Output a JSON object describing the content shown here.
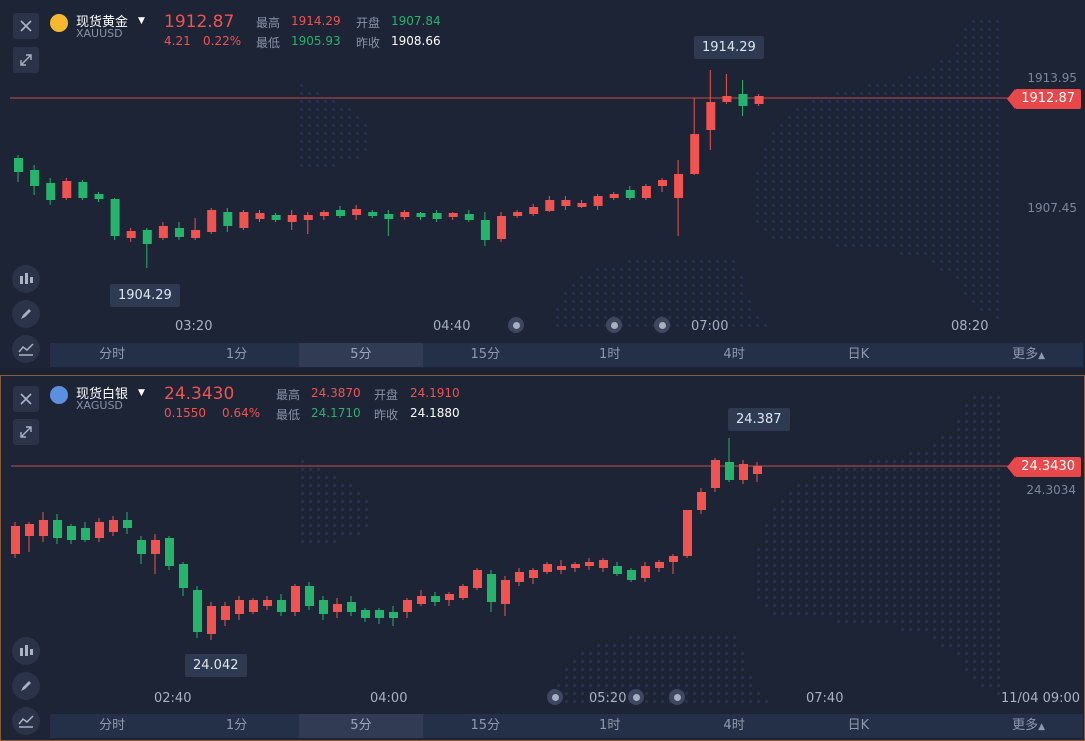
{
  "colors": {
    "up": "#f05350",
    "down": "#26b36b",
    "bg": "#1c2436",
    "accent": "#e8484a"
  },
  "gold": {
    "name": "现货黄金",
    "code": "XAUUSD",
    "price": "1912.87",
    "change": "4.21",
    "change_pct": "0.22%",
    "labels": {
      "high": "最高",
      "open": "开盘",
      "low": "最低",
      "prev_close": "昨收"
    },
    "high": "1914.29",
    "open": "1907.84",
    "low": "1905.93",
    "prev_close": "1908.66",
    "axis": [
      "1913.95",
      "1907.45"
    ],
    "price_tag": "1912.87",
    "callout_high": "1914.29",
    "callout_low": "1904.29",
    "time_labels": [
      "03:20",
      "04:40",
      "07:00",
      "08:20"
    ],
    "tabs": [
      "分时",
      "1分",
      "5分",
      "15分",
      "1时",
      "4时",
      "日K",
      "更多"
    ],
    "active_tab": "5分"
  },
  "silver": {
    "name": "现货白银",
    "code": "XAGUSD",
    "price": "24.3430",
    "change": "0.1550",
    "change_pct": "0.64%",
    "labels": {
      "high": "最高",
      "open": "开盘",
      "low": "最低",
      "prev_close": "昨收"
    },
    "high": "24.3870",
    "open": "24.1910",
    "low": "24.1710",
    "prev_close": "24.1880",
    "axis": [
      "24.3034"
    ],
    "price_tag": "24.3430",
    "callout_high": "24.387",
    "callout_low": "24.042",
    "time_labels": [
      "02:40",
      "04:00",
      "05:20",
      "07:40",
      "11/04 09:00"
    ],
    "tabs": [
      "分时",
      "1分",
      "5分",
      "15分",
      "1时",
      "4时",
      "日K",
      "更多"
    ],
    "active_tab": "5分"
  },
  "icons": [
    "close-icon",
    "expand-icon",
    "candle-type-icon",
    "pencil-icon",
    "indicator-icon",
    "event-dot-icon",
    "caret-down-icon"
  ]
}
